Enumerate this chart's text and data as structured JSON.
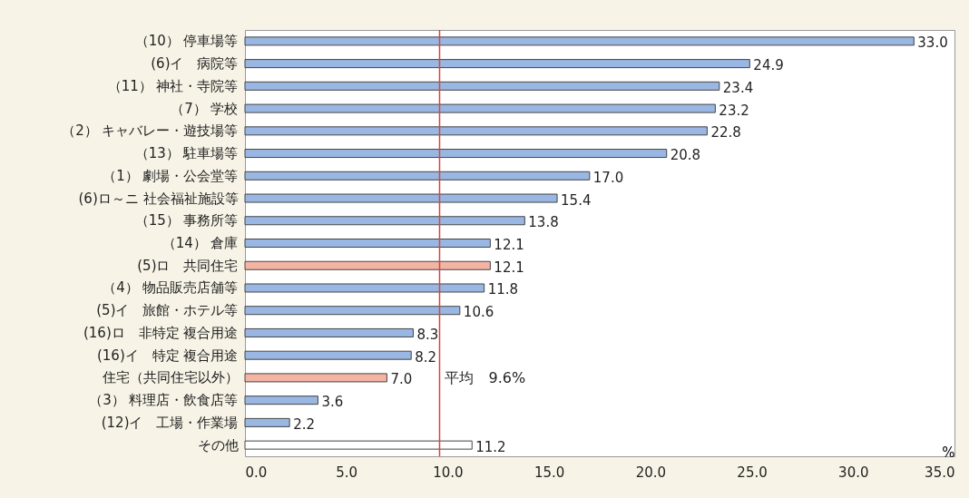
{
  "chart_data": {
    "type": "bar",
    "orientation": "horizontal",
    "categories": [
      "（10） 停車場等",
      "(6)イ　病院等",
      "（11） 神社・寺院等",
      "（7） 学校",
      "（2） キャバレー・遊技場等",
      "（13） 駐車場等",
      "（1） 劇場・公会堂等",
      "(6)ロ～ニ 社会福祉施設等",
      "（15） 事務所等",
      "（14） 倉庫",
      "(5)ロ　共同住宅",
      "（4） 物品販売店舗等",
      "(5)イ　旅館・ホテル等",
      "(16)ロ　非特定 複合用途",
      "(16)イ　特定 複合用途",
      "住宅（共同住宅以外）",
      "（3） 料理店・飲食店等",
      "(12)イ　工場・作業場",
      "その他"
    ],
    "values": [
      33.0,
      24.9,
      23.4,
      23.2,
      22.8,
      20.8,
      17.0,
      15.4,
      13.8,
      12.1,
      12.1,
      11.8,
      10.6,
      8.3,
      8.2,
      7.0,
      3.6,
      2.2,
      11.2
    ],
    "colors": [
      "#9ab7e3",
      "#9ab7e3",
      "#9ab7e3",
      "#9ab7e3",
      "#9ab7e3",
      "#9ab7e3",
      "#9ab7e3",
      "#9ab7e3",
      "#9ab7e3",
      "#9ab7e3",
      "#f4b4a4",
      "#9ab7e3",
      "#9ab7e3",
      "#9ab7e3",
      "#9ab7e3",
      "#f4b4a4",
      "#9ab7e3",
      "#9ab7e3",
      "#ffffff"
    ],
    "value_labels": [
      "33.0",
      "24.9",
      "23.4",
      "23.2",
      "22.8",
      "20.8",
      "17.0",
      "15.4",
      "13.8",
      "12.1",
      "12.1",
      "11.8",
      "10.6",
      "8.3",
      "8.2",
      "7.0",
      "3.6",
      "2.2",
      "11.2"
    ],
    "xlabel": "%",
    "xlim": [
      0,
      35
    ],
    "xticks": [
      {
        "value": 0,
        "label": "0.0"
      },
      {
        "value": 5,
        "label": "5.0"
      },
      {
        "value": 10,
        "label": "10.0"
      },
      {
        "value": 15,
        "label": "15.0"
      },
      {
        "value": 20,
        "label": "20.0"
      },
      {
        "value": 25,
        "label": "25.0"
      },
      {
        "value": 30,
        "label": "30.0"
      },
      {
        "value": 35,
        "label": "35.0"
      }
    ],
    "ref_lines": [
      {
        "axis": "x",
        "value": 9.6,
        "label": "平均　9.6%",
        "color": "#d9463a"
      }
    ],
    "grid": false
  }
}
